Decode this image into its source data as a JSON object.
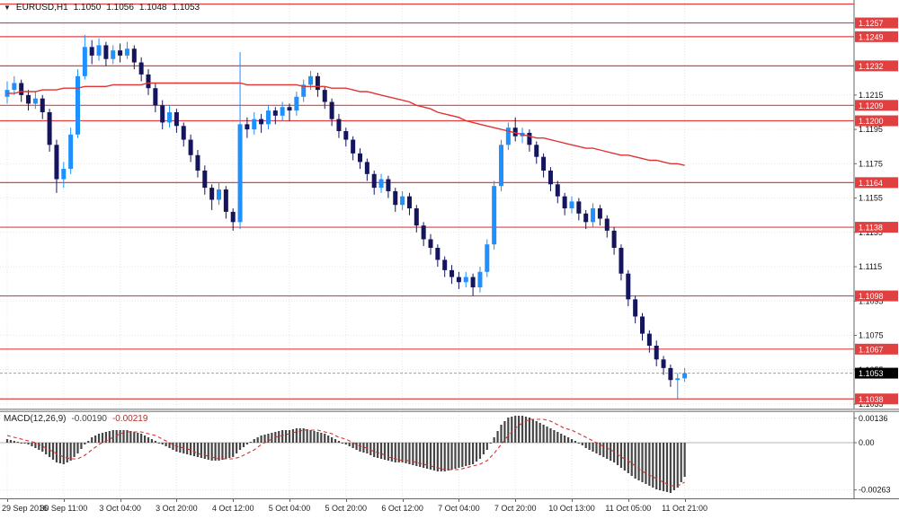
{
  "title": {
    "menu_icon": "▼",
    "symbol": "EURUSD,H1",
    "open": "1.1050",
    "high": "1.1056",
    "low": "1.1048",
    "close": "1.1053"
  },
  "macd_label": {
    "name": "MACD(12,26,9)",
    "main": "-0.00190",
    "signal": "-0.00219"
  },
  "colors": {
    "bull": "#1e90ff",
    "bear": "#15155e",
    "level_line": "#e04040",
    "label_bg_red": "#e04040",
    "label_bg_black": "#000000",
    "ma_line": "#e03434",
    "bid_line": "#8aa5b5",
    "macd_bar": "#454545",
    "macd_signal": "#d43030",
    "grid": "#e6e6e6",
    "axis_line": "#666666",
    "axis_text": "#111111"
  },
  "chart_data": {
    "type": "candlestick",
    "symbol": "EURUSD",
    "timeframe": "H1",
    "title": "EURUSD,H1 1.1050 1.1056 1.1048 1.1053",
    "candles_per_label": 8,
    "time_labels": [
      "29 Sep 2016",
      "30 Sep 11:00",
      "3 Oct 04:00",
      "3 Oct 20:00",
      "4 Oct 12:00",
      "5 Oct 04:00",
      "5 Oct 20:00",
      "6 Oct 12:00",
      "7 Oct 04:00",
      "7 Oct 20:00",
      "10 Oct 13:00",
      "11 Oct 05:00",
      "11 Oct 21:00"
    ],
    "price_axis": {
      "range": [
        1.1035,
        1.1262
      ],
      "plain_labels": [
        "1.1215",
        "1.1195",
        "1.1175",
        "1.1155",
        "1.1135",
        "1.1115",
        "1.1095",
        "1.1075",
        "1.1055",
        "1.1035"
      ],
      "levels": [
        {
          "price": 1.1268,
          "label": null
        },
        {
          "price": 1.1257,
          "label": "1.1257"
        },
        {
          "price": 1.1249,
          "label": "1.1249"
        },
        {
          "price": 1.1232,
          "label": "1.1232"
        },
        {
          "price": 1.1209,
          "label": "1.1209"
        },
        {
          "price": 1.12,
          "label": "1.1200"
        },
        {
          "price": 1.1164,
          "label": "1.1164"
        },
        {
          "price": 1.1138,
          "label": "1.1138"
        },
        {
          "price": 1.1098,
          "label": "1.1098"
        },
        {
          "price": 1.1067,
          "label": "1.1067"
        },
        {
          "price": 1.1038,
          "label": "1.1038"
        }
      ],
      "current": {
        "price": 1.1053,
        "label": "1.1053"
      }
    },
    "candles": [
      [
        1.1214,
        1.1223,
        1.121,
        1.1218
      ],
      [
        1.1218,
        1.1226,
        1.1215,
        1.1222
      ],
      [
        1.1222,
        1.1224,
        1.1211,
        1.1215
      ],
      [
        1.1215,
        1.1218,
        1.1206,
        1.121
      ],
      [
        1.121,
        1.1217,
        1.1207,
        1.1213
      ],
      [
        1.1213,
        1.1215,
        1.1201,
        1.1205
      ],
      [
        1.1205,
        1.1207,
        1.1182,
        1.1186
      ],
      [
        1.1186,
        1.1189,
        1.1158,
        1.1166
      ],
      [
        1.1166,
        1.1176,
        1.1161,
        1.1172
      ],
      [
        1.1172,
        1.1196,
        1.1169,
        1.1192
      ],
      [
        1.1192,
        1.123,
        1.119,
        1.1226
      ],
      [
        1.1226,
        1.125,
        1.1224,
        1.1243
      ],
      [
        1.1243,
        1.1247,
        1.1233,
        1.1238
      ],
      [
        1.1238,
        1.1248,
        1.1235,
        1.1244
      ],
      [
        1.1244,
        1.1246,
        1.1232,
        1.1236
      ],
      [
        1.1236,
        1.1244,
        1.1233,
        1.1241
      ],
      [
        1.1241,
        1.1245,
        1.1234,
        1.1238
      ],
      [
        1.1238,
        1.1246,
        1.1236,
        1.1242
      ],
      [
        1.1242,
        1.1244,
        1.123,
        1.1234
      ],
      [
        1.1234,
        1.1237,
        1.1223,
        1.1227
      ],
      [
        1.1227,
        1.123,
        1.1215,
        1.1219
      ],
      [
        1.1219,
        1.1222,
        1.1205,
        1.1209
      ],
      [
        1.1209,
        1.1212,
        1.1195,
        1.1199
      ],
      [
        1.1199,
        1.1209,
        1.1196,
        1.1205
      ],
      [
        1.1205,
        1.1207,
        1.1193,
        1.1197
      ],
      [
        1.1197,
        1.1199,
        1.1185,
        1.1189
      ],
      [
        1.1189,
        1.1192,
        1.1176,
        1.118
      ],
      [
        1.118,
        1.1183,
        1.1167,
        1.1171
      ],
      [
        1.1171,
        1.1174,
        1.1157,
        1.1161
      ],
      [
        1.1161,
        1.1163,
        1.1148,
        1.1154
      ],
      [
        1.1154,
        1.1164,
        1.1151,
        1.116
      ],
      [
        1.116,
        1.1162,
        1.1143,
        1.1147
      ],
      [
        1.1147,
        1.1149,
        1.1136,
        1.1141
      ],
      [
        1.1141,
        1.124,
        1.1137,
        1.1198
      ],
      [
        1.1198,
        1.1202,
        1.119,
        1.1195
      ],
      [
        1.1195,
        1.1205,
        1.1192,
        1.1201
      ],
      [
        1.1201,
        1.1204,
        1.1193,
        1.1198
      ],
      [
        1.1198,
        1.1209,
        1.1195,
        1.1206
      ],
      [
        1.1206,
        1.1208,
        1.1198,
        1.1203
      ],
      [
        1.1203,
        1.1211,
        1.12,
        1.1208
      ],
      [
        1.1208,
        1.121,
        1.12,
        1.1206
      ],
      [
        1.1206,
        1.1217,
        1.1203,
        1.1214
      ],
      [
        1.1214,
        1.1224,
        1.1211,
        1.1221
      ],
      [
        1.1221,
        1.1229,
        1.1218,
        1.1226
      ],
      [
        1.1226,
        1.1228,
        1.1214,
        1.1218
      ],
      [
        1.1218,
        1.122,
        1.1207,
        1.1211
      ],
      [
        1.1211,
        1.1213,
        1.1197,
        1.1201
      ],
      [
        1.1201,
        1.1204,
        1.119,
        1.1194
      ],
      [
        1.1194,
        1.1196,
        1.1185,
        1.1189
      ],
      [
        1.1189,
        1.1191,
        1.1177,
        1.1181
      ],
      [
        1.1181,
        1.1184,
        1.1172,
        1.1176
      ],
      [
        1.1176,
        1.1178,
        1.1165,
        1.1169
      ],
      [
        1.1169,
        1.1171,
        1.1157,
        1.1161
      ],
      [
        1.1161,
        1.1169,
        1.1158,
        1.1166
      ],
      [
        1.1166,
        1.1168,
        1.1155,
        1.1159
      ],
      [
        1.1159,
        1.1161,
        1.1147,
        1.1151
      ],
      [
        1.1151,
        1.1159,
        1.1148,
        1.1156
      ],
      [
        1.1156,
        1.1158,
        1.1145,
        1.1149
      ],
      [
        1.1149,
        1.1151,
        1.1135,
        1.1139
      ],
      [
        1.1139,
        1.1141,
        1.1127,
        1.1131
      ],
      [
        1.1131,
        1.1134,
        1.1122,
        1.1126
      ],
      [
        1.1126,
        1.1128,
        1.1115,
        1.1119
      ],
      [
        1.1119,
        1.1121,
        1.1109,
        1.1113
      ],
      [
        1.1113,
        1.1116,
        1.1105,
        1.1109
      ],
      [
        1.1109,
        1.1112,
        1.1102,
        1.1106
      ],
      [
        1.1106,
        1.1112,
        1.1103,
        1.1109
      ],
      [
        1.1109,
        1.1111,
        1.1098,
        1.1103
      ],
      [
        1.1103,
        1.1115,
        1.11,
        1.1112
      ],
      [
        1.1112,
        1.1131,
        1.1109,
        1.1128
      ],
      [
        1.1128,
        1.1165,
        1.1125,
        1.1162
      ],
      [
        1.1162,
        1.1189,
        1.1159,
        1.1186
      ],
      [
        1.1186,
        1.1199,
        1.1183,
        1.1196
      ],
      [
        1.1196,
        1.1202,
        1.1188,
        1.1191
      ],
      [
        1.1191,
        1.1196,
        1.1187,
        1.1193
      ],
      [
        1.1193,
        1.1195,
        1.1182,
        1.1186
      ],
      [
        1.1186,
        1.1188,
        1.1175,
        1.1179
      ],
      [
        1.1179,
        1.1181,
        1.1167,
        1.1171
      ],
      [
        1.1171,
        1.1173,
        1.1159,
        1.1163
      ],
      [
        1.1163,
        1.1165,
        1.1152,
        1.1156
      ],
      [
        1.1156,
        1.1158,
        1.1145,
        1.1149
      ],
      [
        1.1149,
        1.1156,
        1.1146,
        1.1153
      ],
      [
        1.1153,
        1.1155,
        1.1142,
        1.1146
      ],
      [
        1.1146,
        1.1148,
        1.1137,
        1.1141
      ],
      [
        1.1141,
        1.1152,
        1.1138,
        1.1149
      ],
      [
        1.1149,
        1.1151,
        1.1139,
        1.1143
      ],
      [
        1.1143,
        1.1145,
        1.1132,
        1.1136
      ],
      [
        1.1136,
        1.1138,
        1.1122,
        1.1126
      ],
      [
        1.1126,
        1.1128,
        1.1107,
        1.1111
      ],
      [
        1.1111,
        1.1113,
        1.1092,
        1.1096
      ],
      [
        1.1096,
        1.1098,
        1.1082,
        1.1086
      ],
      [
        1.1086,
        1.1088,
        1.1072,
        1.1076
      ],
      [
        1.1076,
        1.1078,
        1.1065,
        1.1069
      ],
      [
        1.1069,
        1.1072,
        1.1057,
        1.1061
      ],
      [
        1.1061,
        1.1063,
        1.1052,
        1.1056
      ],
      [
        1.1056,
        1.1058,
        1.1045,
        1.1049
      ],
      [
        1.1049,
        1.1053,
        1.1038,
        1.105
      ],
      [
        1.105,
        1.1056,
        1.1048,
        1.1053
      ]
    ],
    "ma": {
      "name": "moving-average",
      "values": [
        1.1216,
        1.1216,
        1.1217,
        1.1217,
        1.1217,
        1.1218,
        1.1218,
        1.1218,
        1.1219,
        1.1219,
        1.1219,
        1.122,
        1.122,
        1.122,
        1.122,
        1.1221,
        1.1221,
        1.1221,
        1.1221,
        1.1221,
        1.1222,
        1.1222,
        1.1222,
        1.1222,
        1.1222,
        1.1222,
        1.1222,
        1.1222,
        1.1222,
        1.1222,
        1.1222,
        1.1222,
        1.1222,
        1.1222,
        1.1221,
        1.1221,
        1.1221,
        1.1221,
        1.1221,
        1.1221,
        1.1221,
        1.1221,
        1.122,
        1.122,
        1.122,
        1.122,
        1.1219,
        1.1219,
        1.1219,
        1.1218,
        1.1217,
        1.1217,
        1.1216,
        1.1215,
        1.1214,
        1.1213,
        1.1212,
        1.1211,
        1.1209,
        1.1208,
        1.1207,
        1.1205,
        1.1204,
        1.1203,
        1.1202,
        1.12,
        1.1199,
        1.1198,
        1.1197,
        1.1196,
        1.1195,
        1.1194,
        1.1193,
        1.1192,
        1.1191,
        1.119,
        1.119,
        1.1189,
        1.1188,
        1.1187,
        1.1186,
        1.1185,
        1.1184,
        1.1184,
        1.1183,
        1.1182,
        1.1181,
        1.118,
        1.118,
        1.1179,
        1.1178,
        1.1177,
        1.1177,
        1.1176,
        1.1175,
        1.1175,
        1.1174
      ]
    },
    "indicator": {
      "type": "macd-histogram",
      "label": "MACD(12,26,9)",
      "main_value": "-0.00190",
      "signal_value": "-0.00219",
      "range": [
        -0.0031,
        0.0017
      ],
      "axis": [
        {
          "value": 0.00136,
          "label": "0.00136"
        },
        {
          "value": 0,
          "label": "0.00"
        },
        {
          "value": -0.00263,
          "label": "-0.00263"
        }
      ],
      "main": [
        0.0002,
        0.0001,
        0.0,
        -0.0001,
        -0.0003,
        -0.0005,
        -0.0008,
        -0.0011,
        -0.0012,
        -0.001,
        -0.0006,
        -0.0001,
        0.0003,
        0.0005,
        0.0006,
        0.0007,
        0.0007,
        0.0007,
        0.0006,
        0.0005,
        0.0003,
        0.0001,
        -0.0001,
        -0.0003,
        -0.0005,
        -0.0006,
        -0.0007,
        -0.0008,
        -0.0009,
        -0.001,
        -0.001,
        -0.0009,
        -0.0008,
        -0.0004,
        -0.0001,
        0.0002,
        0.0004,
        0.0005,
        0.0006,
        0.0007,
        0.0007,
        0.0008,
        0.0008,
        0.0007,
        0.0006,
        0.0005,
        0.0003,
        0.0001,
        -0.0001,
        -0.0003,
        -0.0005,
        -0.0006,
        -0.0008,
        -0.0009,
        -0.001,
        -0.0011,
        -0.0011,
        -0.0012,
        -0.0013,
        -0.0014,
        -0.0015,
        -0.0016,
        -0.0016,
        -0.0015,
        -0.0014,
        -0.0013,
        -0.0012,
        -0.0009,
        -0.0004,
        0.0003,
        0.001,
        0.0014,
        0.0015,
        0.0015,
        0.0014,
        0.0012,
        0.001,
        0.0008,
        0.0006,
        0.0004,
        0.0002,
        0.0,
        -0.0003,
        -0.0005,
        -0.0007,
        -0.0009,
        -0.0011,
        -0.0014,
        -0.0017,
        -0.002,
        -0.0022,
        -0.0024,
        -0.0026,
        -0.0027,
        -0.0028,
        -0.0025,
        -0.0019
      ],
      "signal": [
        0.0004,
        0.0003,
        0.0002,
        0.0001,
        0.0,
        -0.0002,
        -0.0004,
        -0.0006,
        -0.0008,
        -0.0009,
        -0.0009,
        -0.0007,
        -0.0004,
        -0.0001,
        0.0001,
        0.0003,
        0.0005,
        0.0006,
        0.0006,
        0.0006,
        0.0005,
        0.0004,
        0.0002,
        0.0,
        -0.0002,
        -0.0003,
        -0.0004,
        -0.0006,
        -0.0007,
        -0.0008,
        -0.0009,
        -0.0009,
        -0.0009,
        -0.0008,
        -0.0006,
        -0.0004,
        -0.0001,
        0.0001,
        0.0003,
        0.0004,
        0.0005,
        0.0006,
        0.0007,
        0.0007,
        0.0007,
        0.0006,
        0.0005,
        0.0003,
        0.0002,
        0.0,
        -0.0002,
        -0.0003,
        -0.0005,
        -0.0006,
        -0.0008,
        -0.0009,
        -0.001,
        -0.001,
        -0.0011,
        -0.0012,
        -0.0013,
        -0.0014,
        -0.0015,
        -0.0015,
        -0.0015,
        -0.0014,
        -0.0013,
        -0.0012,
        -0.001,
        -0.0006,
        -0.0001,
        0.0004,
        0.0008,
        0.0011,
        0.0013,
        0.0013,
        0.0013,
        0.0012,
        0.001,
        0.0008,
        0.0007,
        0.0005,
        0.0003,
        0.0001,
        -0.0001,
        -0.0003,
        -0.0005,
        -0.0008,
        -0.001,
        -0.0013,
        -0.0016,
        -0.0018,
        -0.002,
        -0.0022,
        -0.0024,
        -0.0024,
        -0.0022
      ]
    }
  }
}
